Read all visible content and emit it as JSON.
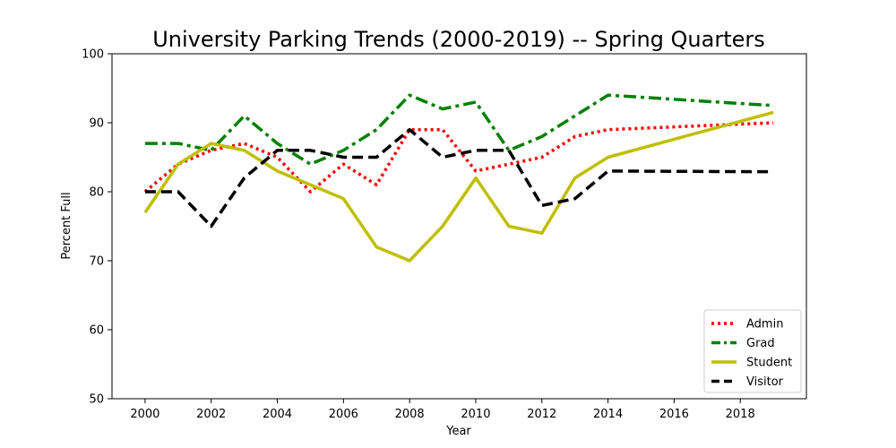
{
  "chart_data": {
    "type": "line",
    "title": "University Parking Trends (2000-2019) -- Spring Quarters",
    "xlabel": "Year",
    "ylabel": "Percent Full",
    "xlim": [
      1999,
      2020
    ],
    "ylim": [
      50,
      100
    ],
    "xticks": [
      2000,
      2002,
      2004,
      2006,
      2008,
      2010,
      2012,
      2014,
      2016,
      2018
    ],
    "yticks": [
      50,
      60,
      70,
      80,
      90,
      100
    ],
    "grid": false,
    "legend_position": "lower-right",
    "series": [
      {
        "name": "Admin",
        "color": "#ff0000",
        "style": "dotted",
        "x": [
          2000,
          2001,
          2002,
          2003,
          2004,
          2005,
          2006,
          2007,
          2008,
          2009,
          2010,
          2011,
          2012,
          2013,
          2014,
          2019
        ],
        "y": [
          80,
          84,
          86,
          87,
          85,
          80,
          84,
          81,
          89,
          89,
          83,
          84,
          85,
          88,
          89,
          90
        ]
      },
      {
        "name": "Grad",
        "color": "#008000",
        "style": "dashdot",
        "x": [
          2000,
          2001,
          2002,
          2003,
          2004,
          2005,
          2006,
          2007,
          2008,
          2009,
          2010,
          2011,
          2012,
          2013,
          2014,
          2019
        ],
        "y": [
          87,
          87,
          86,
          91,
          87,
          84,
          86,
          89,
          94,
          92,
          93,
          86,
          88,
          91,
          94,
          92.5
        ]
      },
      {
        "name": "Student",
        "color": "#bfbf00",
        "style": "solid",
        "x": [
          2000,
          2001,
          2002,
          2003,
          2004,
          2005,
          2006,
          2007,
          2008,
          2009,
          2010,
          2011,
          2012,
          2013,
          2014,
          2019
        ],
        "y": [
          77,
          84,
          87,
          86,
          83,
          81,
          79,
          72,
          70,
          75,
          82,
          75,
          74,
          82,
          85,
          91.5
        ]
      },
      {
        "name": "Visitor",
        "color": "#000000",
        "style": "dashed",
        "x": [
          2000,
          2001,
          2002,
          2003,
          2004,
          2005,
          2006,
          2007,
          2008,
          2009,
          2010,
          2011,
          2012,
          2013,
          2014,
          2019
        ],
        "y": [
          80,
          80,
          75,
          82,
          86,
          86,
          85,
          85,
          89,
          85,
          86,
          86,
          78,
          79,
          83,
          82.9
        ]
      }
    ]
  }
}
